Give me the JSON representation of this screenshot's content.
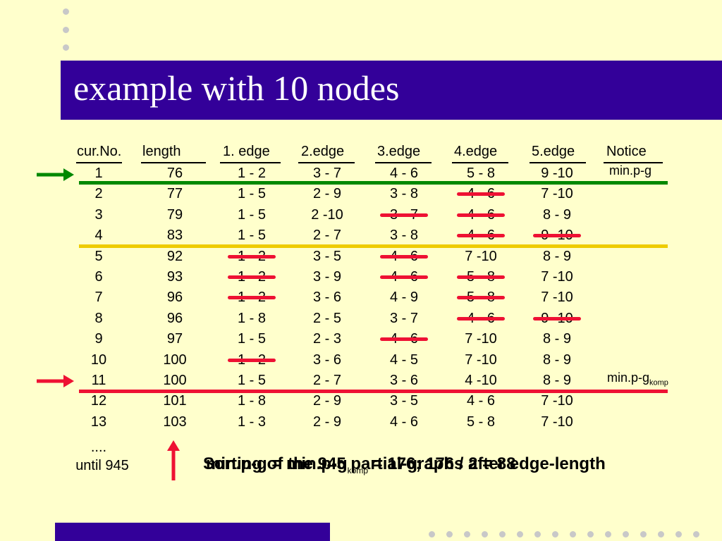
{
  "title": "example with 10 nodes",
  "headers": [
    "cur.No.",
    "length",
    "1. edge",
    "2.edge",
    "3.edge",
    "4.edge",
    "5.edge",
    "Notice"
  ],
  "rows": [
    {
      "no": "1",
      "length": "76",
      "e1": "1 - 2",
      "e2": "3 - 7",
      "e3": "4 - 6",
      "e4": "5 - 8",
      "e5": "9 -10",
      "notice": "min.p-g"
    },
    {
      "no": "2",
      "length": "77",
      "e1": "1 - 5",
      "e2": "2 - 9",
      "e3": "3 - 8",
      "e4": "4 - 6",
      "e5": "7 -10",
      "notice": ""
    },
    {
      "no": "3",
      "length": "79",
      "e1": "1 - 5",
      "e2": "2 -10",
      "e3": "3 - 7",
      "e4": "4 - 6",
      "e5": "8 - 9",
      "notice": ""
    },
    {
      "no": "4",
      "length": "83",
      "e1": "1 - 5",
      "e2": "2 - 7",
      "e3": "3 - 8",
      "e4": "4 - 6",
      "e5": "9 -10",
      "notice": ""
    },
    {
      "no": "5",
      "length": "92",
      "e1": "1 - 2",
      "e2": "3 - 5",
      "e3": "4 - 6",
      "e4": "7 -10",
      "e5": "8 - 9",
      "notice": ""
    },
    {
      "no": "6",
      "length": "93",
      "e1": "1 - 2",
      "e2": "3 - 9",
      "e3": "4 - 6",
      "e4": "5 - 8",
      "e5": "7 -10",
      "notice": ""
    },
    {
      "no": "7",
      "length": "96",
      "e1": "1 - 2",
      "e2": "3 - 6",
      "e3": "4 - 9",
      "e4": "5 - 8",
      "e5": "7 -10",
      "notice": ""
    },
    {
      "no": "8",
      "length": "96",
      "e1": "1 - 8",
      "e2": "2 - 5",
      "e3": "3 - 7",
      "e4": "4 - 6",
      "e5": "9 -10",
      "notice": ""
    },
    {
      "no": "9",
      "length": "97",
      "e1": "1 - 5",
      "e2": "2 - 3",
      "e3": "4 - 6",
      "e4": "7 -10",
      "e5": "8 - 9",
      "notice": ""
    },
    {
      "no": "10",
      "length": "100",
      "e1": "1 - 2",
      "e2": "3 - 6",
      "e3": "4 - 5",
      "e4": "7 -10",
      "e5": "8 - 9",
      "notice": ""
    },
    {
      "no": "11",
      "length": "100",
      "e1": "1 - 5",
      "e2": "2 - 7",
      "e3": "3 - 6",
      "e4": "4 -10",
      "e5": "8 - 9",
      "notice": "min.p-g",
      "notice_sub": "komp"
    },
    {
      "no": "12",
      "length": "101",
      "e1": "1 - 8",
      "e2": "2 - 9",
      "e3": "3 - 5",
      "e4": "4 - 6",
      "e5": "7 -10",
      "notice": ""
    },
    {
      "no": "13",
      "length": "103",
      "e1": "1 - 3",
      "e2": "2 - 9",
      "e3": "4 - 6",
      "e4": "5 - 8",
      "e5": "7 -10",
      "notice": ""
    }
  ],
  "ellipsis": "....",
  "until_label": "until 945",
  "overlay_a": "Sorting of the 945 partial-graphs after edge-length",
  "overlay_b_prefix": "min.p-g = min.p-g",
  "overlay_b_sub": "komp",
  "overlay_b_suffix": " = 176;   176 / 2 = 88",
  "colors": {
    "title_bar": "#330099",
    "background": "#ffffcc",
    "green": "#008800",
    "yellow": "#eecc00",
    "red": "#ee1133"
  }
}
